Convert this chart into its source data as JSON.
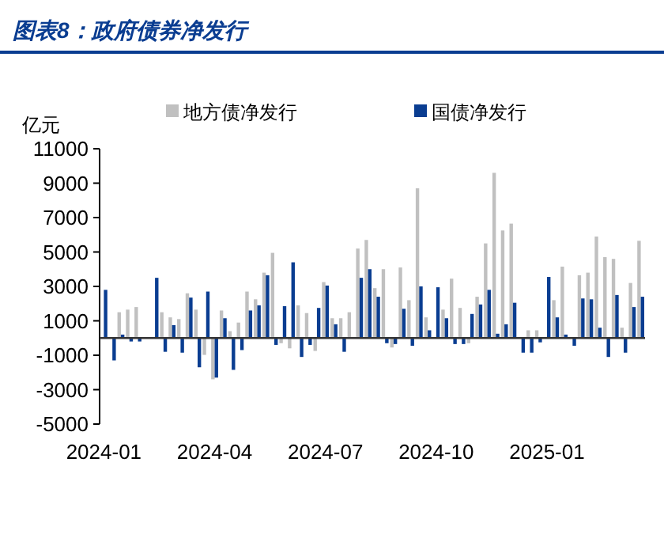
{
  "chart_data": {
    "type": "bar",
    "title": "图表8：政府债券净发行",
    "ylabel": "亿元",
    "legend": "top",
    "categories": [
      "2024-01",
      null,
      null,
      null,
      null,
      null,
      null,
      null,
      null,
      null,
      null,
      null,
      null,
      "2024-04",
      null,
      null,
      null,
      null,
      null,
      null,
      null,
      null,
      null,
      null,
      null,
      null,
      "2024-07",
      null,
      null,
      null,
      null,
      null,
      null,
      null,
      null,
      null,
      null,
      null,
      null,
      "2024-10",
      null,
      null,
      null,
      null,
      null,
      null,
      null,
      null,
      null,
      null,
      null,
      null,
      "2025-01",
      null,
      null,
      null,
      null,
      null,
      null,
      null,
      null,
      null,
      null,
      null
    ],
    "ylim": [
      -5000,
      11000
    ],
    "yticks": [
      -5000,
      -3000,
      -1000,
      1000,
      3000,
      5000,
      7000,
      9000,
      11000
    ],
    "series": [
      {
        "name": "地方债净发行",
        "color": "#c0c0c0",
        "values": [
          0,
          null,
          1500,
          1650,
          1800,
          0,
          0,
          1500,
          1200,
          1100,
          2600,
          1650,
          -980,
          -2400,
          1600,
          400,
          900,
          2700,
          2250,
          3800,
          4950,
          -300,
          -600,
          1900,
          1450,
          -750,
          3250,
          1150,
          1150,
          1500,
          5200,
          5700,
          2900,
          4000,
          -550,
          4100,
          2200,
          8700,
          1200,
          0,
          1650,
          3450,
          1750,
          -300,
          2400,
          5500,
          9600,
          6250,
          6650,
          null,
          450,
          450,
          0,
          2200,
          4150,
          0,
          3650,
          3800,
          5900,
          4700,
          4600,
          600,
          3200,
          5650
        ]
      },
      {
        "name": "国债净发行",
        "color": "#0a3d91",
        "values": [
          2800,
          -1300,
          200,
          -200,
          -200,
          0,
          3500,
          -800,
          750,
          -850,
          2350,
          -1700,
          2700,
          -2300,
          1150,
          -1850,
          -700,
          1600,
          1900,
          3650,
          -400,
          1850,
          4400,
          -1100,
          -400,
          1750,
          3050,
          800,
          -800,
          0,
          3500,
          4000,
          2400,
          -300,
          -350,
          1700,
          -450,
          3000,
          450,
          2950,
          1150,
          -350,
          -350,
          1400,
          1950,
          2800,
          250,
          800,
          2050,
          -850,
          -850,
          -250,
          3550,
          1200,
          200,
          -450,
          2300,
          2250,
          600,
          -1100,
          2500,
          -850,
          1800,
          2400
        ]
      }
    ]
  }
}
